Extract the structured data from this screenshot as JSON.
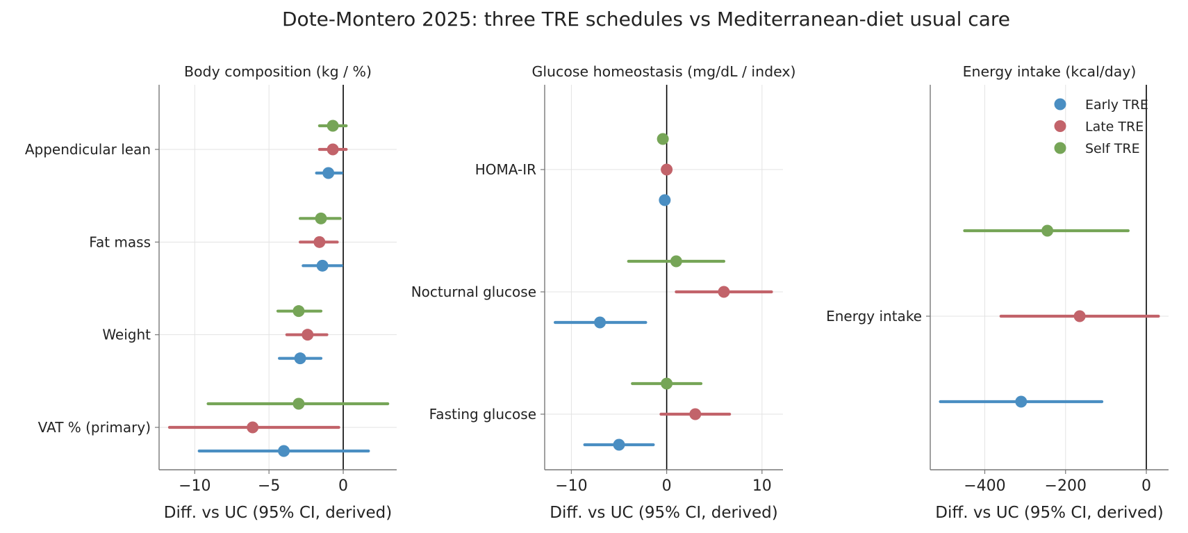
{
  "figure": {
    "title": "Dote-Montero 2025: three TRE schedules vs Mediterranean-diet usual care"
  },
  "legend": {
    "placement": "top-right of third panel",
    "items": [
      {
        "label": "Early TRE",
        "color": "#4a8ec2"
      },
      {
        "label": "Late TRE",
        "color": "#c2636a"
      },
      {
        "label": "Self TRE",
        "color": "#76a557"
      }
    ]
  },
  "chart_data": [
    {
      "type": "forest",
      "title": "Body composition (kg / %)",
      "xlabel": "Diff. vs UC (95% CI, derived)",
      "xlim": [
        -12.4,
        3.6
      ],
      "xticks": [
        -10,
        -5,
        0
      ],
      "xtick_labels": [
        "−10",
        "−5",
        "0"
      ],
      "reference_line": 0,
      "grid": true,
      "categories": [
        "Appendicular lean",
        "Fat mass",
        "Weight",
        "VAT % (primary)"
      ],
      "series": [
        {
          "name": "Early TRE",
          "color": "#4a8ec2",
          "estimates": [
            -1.0,
            -1.4,
            -2.9,
            -4.0
          ],
          "ci_low": [
            -1.8,
            -2.7,
            -4.3,
            -9.7
          ],
          "ci_high": [
            -0.1,
            -0.1,
            -1.5,
            1.7
          ]
        },
        {
          "name": "Late TRE",
          "color": "#c2636a",
          "estimates": [
            -0.7,
            -1.6,
            -2.4,
            -6.1
          ],
          "ci_low": [
            -1.6,
            -2.9,
            -3.8,
            -11.7
          ],
          "ci_high": [
            0.2,
            -0.4,
            -1.1,
            -0.3
          ]
        },
        {
          "name": "Self TRE",
          "color": "#76a557",
          "estimates": [
            -0.7,
            -1.5,
            -3.0,
            -3.0
          ],
          "ci_low": [
            -1.6,
            -2.9,
            -4.4,
            -9.1
          ],
          "ci_high": [
            0.2,
            -0.2,
            -1.5,
            3.0
          ]
        }
      ]
    },
    {
      "type": "forest",
      "title": "Glucose homeostasis (mg/dL / index)",
      "xlabel": "Diff. vs UC (95% CI, derived)",
      "xlim": [
        -12.8,
        12.2
      ],
      "xticks": [
        -10,
        0,
        10
      ],
      "xtick_labels": [
        "−10",
        "0",
        "10"
      ],
      "reference_line": 0,
      "grid": true,
      "categories": [
        "HOMA-IR",
        "Nocturnal glucose",
        "Fasting glucose"
      ],
      "series": [
        {
          "name": "Early TRE",
          "color": "#4a8ec2",
          "estimates": [
            -0.2,
            -7.0,
            -5.0
          ],
          "ci_low": [
            -0.2,
            -11.7,
            -8.6
          ],
          "ci_high": [
            -0.2,
            -2.2,
            -1.4
          ]
        },
        {
          "name": "Late TRE",
          "color": "#c2636a",
          "estimates": [
            0.0,
            6.0,
            3.0
          ],
          "ci_low": [
            0.0,
            1.0,
            -0.6
          ],
          "ci_high": [
            0.0,
            11.0,
            6.6
          ]
        },
        {
          "name": "Self TRE",
          "color": "#76a557",
          "estimates": [
            -0.4,
            1.0,
            0.0
          ],
          "ci_low": [
            -0.4,
            -4.0,
            -3.6
          ],
          "ci_high": [
            -0.4,
            6.0,
            3.6
          ]
        }
      ]
    },
    {
      "type": "forest",
      "title": "Energy intake (kcal/day)",
      "xlabel": "Diff. vs UC (95% CI, derived)",
      "xlim": [
        -535,
        55
      ],
      "xticks": [
        -400,
        -200,
        0
      ],
      "xtick_labels": [
        "−400",
        "−200",
        "0"
      ],
      "reference_line": 0,
      "grid": true,
      "categories": [
        "Energy intake"
      ],
      "series": [
        {
          "name": "Early TRE",
          "color": "#4a8ec2",
          "estimates": [
            -310
          ],
          "ci_low": [
            -510
          ],
          "ci_high": [
            -110
          ]
        },
        {
          "name": "Late TRE",
          "color": "#c2636a",
          "estimates": [
            -165
          ],
          "ci_low": [
            -360
          ],
          "ci_high": [
            30
          ]
        },
        {
          "name": "Self TRE",
          "color": "#76a557",
          "estimates": [
            -245
          ],
          "ci_low": [
            -450
          ],
          "ci_high": [
            -45
          ]
        }
      ]
    }
  ]
}
